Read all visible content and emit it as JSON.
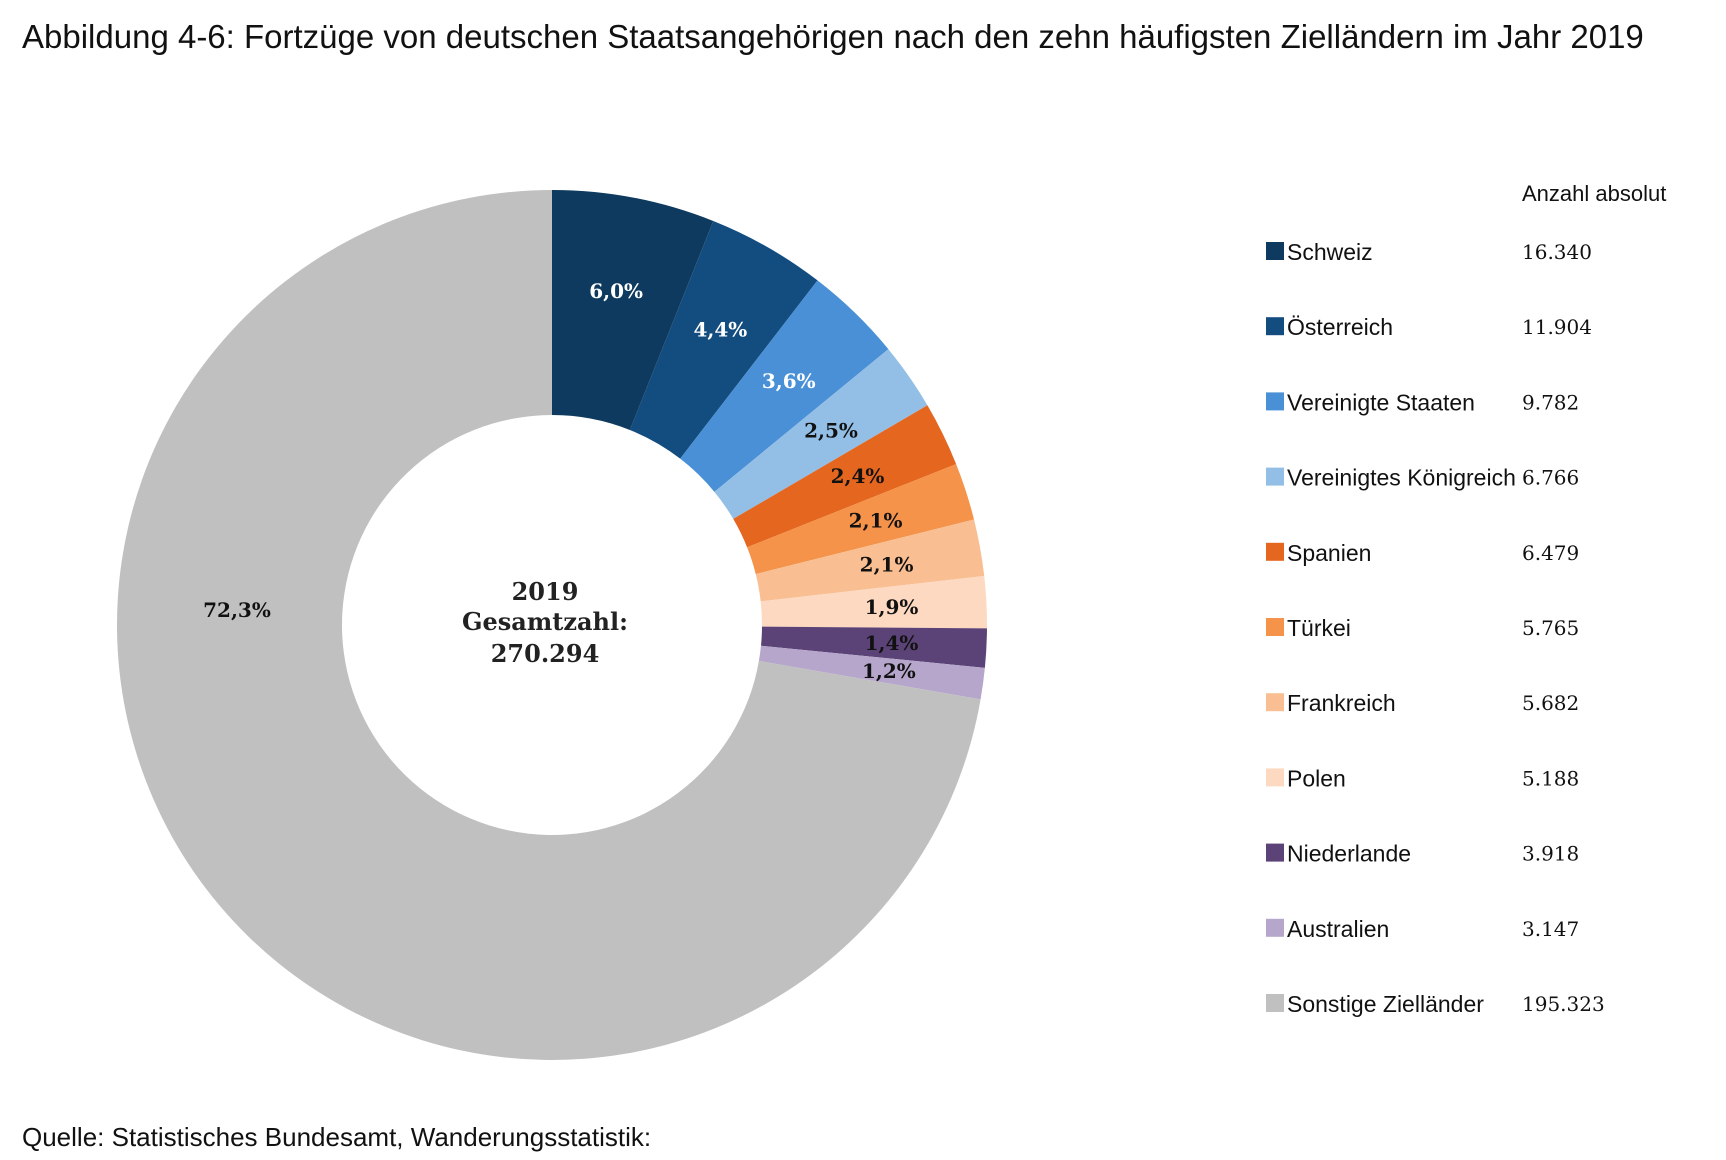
{
  "title": "Abbildung 4-6: Fortzüge von deutschen Staatsangehörigen nach den zehn häufigsten Zielländern im Jahr 2019",
  "source": "Quelle: Statistisches Bundesamt, Wanderungsstatistik:",
  "chart_data": {
    "type": "pie",
    "variant": "donut",
    "legend_header": "Anzahl absolut",
    "legend_position": "right",
    "center_label": {
      "year": "2019",
      "caption": "Gesamtzahl:",
      "total": "270.294"
    },
    "slices": [
      {
        "name": "Schweiz",
        "value": 16340,
        "value_label": "16.340",
        "percent_label": "6,0%",
        "color": "#0d3a5e",
        "label_color": "#ffffff"
      },
      {
        "name": "Österreich",
        "value": 11904,
        "value_label": "11.904",
        "percent_label": "4,4%",
        "color": "#134d80",
        "label_color": "#ffffff"
      },
      {
        "name": "Vereinigte Staaten",
        "value": 9782,
        "value_label": "9.782",
        "percent_label": "3,6%",
        "color": "#4a90d6",
        "label_color": "#ffffff"
      },
      {
        "name": "Vereinigtes Königreich",
        "value": 6766,
        "value_label": "6.766",
        "percent_label": "2,5%",
        "color": "#93bfe6",
        "label_color": "#111111"
      },
      {
        "name": "Spanien",
        "value": 6479,
        "value_label": "6.479",
        "percent_label": "2,4%",
        "color": "#e5661f",
        "label_color": "#111111"
      },
      {
        "name": "Türkei",
        "value": 5765,
        "value_label": "5.765",
        "percent_label": "2,1%",
        "color": "#f5934a",
        "label_color": "#111111"
      },
      {
        "name": "Frankreich",
        "value": 5682,
        "value_label": "5.682",
        "percent_label": "2,1%",
        "color": "#f9bf93",
        "label_color": "#111111"
      },
      {
        "name": "Polen",
        "value": 5188,
        "value_label": "5.188",
        "percent_label": "1,9%",
        "color": "#fcd9c0",
        "label_color": "#111111"
      },
      {
        "name": "Niederlande",
        "value": 3918,
        "value_label": "3.918",
        "percent_label": "1,4%",
        "color": "#5b4377",
        "label_color": "#111111"
      },
      {
        "name": "Australien",
        "value": 3147,
        "value_label": "3.147",
        "percent_label": "1,2%",
        "color": "#b6a6cb",
        "label_color": "#111111"
      },
      {
        "name": "Sonstige Zielländer",
        "value": 195323,
        "value_label": "195.323",
        "percent_label": "72,3%",
        "color": "#c0c0c0",
        "label_color": "#111111"
      }
    ]
  }
}
